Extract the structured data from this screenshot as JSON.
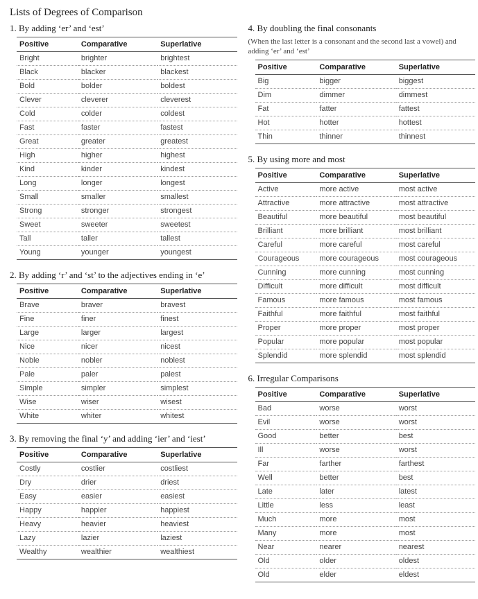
{
  "pageTitle": "Lists of Degrees of Comparison",
  "headers": {
    "positive": "Positive",
    "comparative": "Comparative",
    "superlative": "Superlative"
  },
  "left": [
    {
      "heading": "1. By adding ‘er’ and ‘est’",
      "rows": [
        [
          "Bright",
          "brighter",
          "brightest"
        ],
        [
          "Black",
          "blacker",
          "blackest"
        ],
        [
          "Bold",
          "bolder",
          "boldest"
        ],
        [
          "Clever",
          "cleverer",
          "cleverest"
        ],
        [
          "Cold",
          "colder",
          "coldest"
        ],
        [
          "Fast",
          "faster",
          "fastest"
        ],
        [
          "Great",
          "greater",
          "greatest"
        ],
        [
          "High",
          "higher",
          "highest"
        ],
        [
          "Kind",
          "kinder",
          "kindest"
        ],
        [
          "Long",
          "longer",
          "longest"
        ],
        [
          "Small",
          "smaller",
          "smallest"
        ],
        [
          "Strong",
          "stronger",
          "strongest"
        ],
        [
          "Sweet",
          "sweeter",
          "sweetest"
        ],
        [
          "Tall",
          "taller",
          "tallest"
        ],
        [
          "Young",
          "younger",
          "youngest"
        ]
      ]
    },
    {
      "heading": "2. By adding ‘r’ and ‘st’ to the adjectives ending in ‘e’",
      "rows": [
        [
          "Brave",
          "braver",
          "bravest"
        ],
        [
          "Fine",
          "finer",
          "finest"
        ],
        [
          "Large",
          "larger",
          "largest"
        ],
        [
          "Nice",
          "nicer",
          "nicest"
        ],
        [
          "Noble",
          "nobler",
          "noblest"
        ],
        [
          "Pale",
          "paler",
          "palest"
        ],
        [
          "Simple",
          "simpler",
          "simplest"
        ],
        [
          "Wise",
          "wiser",
          "wisest"
        ],
        [
          "White",
          "whiter",
          "whitest"
        ]
      ]
    },
    {
      "heading": "3. By removing the final ‘y’ and adding ‘ier’ and ‘iest’",
      "rows": [
        [
          "Costly",
          "costlier",
          "costliest"
        ],
        [
          "Dry",
          "drier",
          "driest"
        ],
        [
          "Easy",
          "easier",
          "easiest"
        ],
        [
          "Happy",
          "happier",
          "happiest"
        ],
        [
          "Heavy",
          "heavier",
          "heaviest"
        ],
        [
          "Lazy",
          "lazier",
          "laziest"
        ],
        [
          "Wealthy",
          "wealthier",
          "wealthiest"
        ]
      ]
    }
  ],
  "right": [
    {
      "heading": "4. By doubling the final consonants",
      "subnote": "(When the last letter is a consonant and the second last a vowel) and adding ‘er’ and ‘est’",
      "rows": [
        [
          "Big",
          "bigger",
          "biggest"
        ],
        [
          "Dim",
          "dimmer",
          "dimmest"
        ],
        [
          "Fat",
          "fatter",
          "fattest"
        ],
        [
          "Hot",
          "hotter",
          "hottest"
        ],
        [
          "Thin",
          "thinner",
          "thinnest"
        ]
      ]
    },
    {
      "heading": "5. By using more and most",
      "rows": [
        [
          "Active",
          "more active",
          "most active"
        ],
        [
          "Attractive",
          "more attractive",
          "most attractive"
        ],
        [
          "Beautiful",
          "more beautiful",
          "most beautiful"
        ],
        [
          "Brilliant",
          "more brilliant",
          "most brilliant"
        ],
        [
          "Careful",
          "more careful",
          "most careful"
        ],
        [
          "Courageous",
          "more courageous",
          "most courageous"
        ],
        [
          "Cunning",
          "more cunning",
          "most cunning"
        ],
        [
          "Difficult",
          "more difficult",
          "most difficult"
        ],
        [
          "Famous",
          "more famous",
          "most famous"
        ],
        [
          "Faithful",
          "more faithful",
          "most faithful"
        ],
        [
          "Proper",
          "more proper",
          "most proper"
        ],
        [
          "Popular",
          "more popular",
          "most popular"
        ],
        [
          "Splendid",
          "more splendid",
          "most splendid"
        ]
      ]
    },
    {
      "heading": "6. Irregular Comparisons",
      "rows": [
        [
          "Bad",
          "worse",
          "worst"
        ],
        [
          "Evil",
          "worse",
          "worst"
        ],
        [
          "Good",
          "better",
          "best"
        ],
        [
          "Ill",
          "worse",
          "worst"
        ],
        [
          "Far",
          "farther",
          "farthest"
        ],
        [
          "Well",
          "better",
          "best"
        ],
        [
          "Late",
          "later",
          "latest"
        ],
        [
          "Little",
          "less",
          "least"
        ],
        [
          "Much",
          "more",
          "most"
        ],
        [
          "Many",
          "more",
          "most"
        ],
        [
          "Near",
          "nearer",
          "nearest"
        ],
        [
          "Old",
          "older",
          "oldest"
        ],
        [
          "Old",
          "elder",
          "eldest"
        ]
      ]
    }
  ]
}
